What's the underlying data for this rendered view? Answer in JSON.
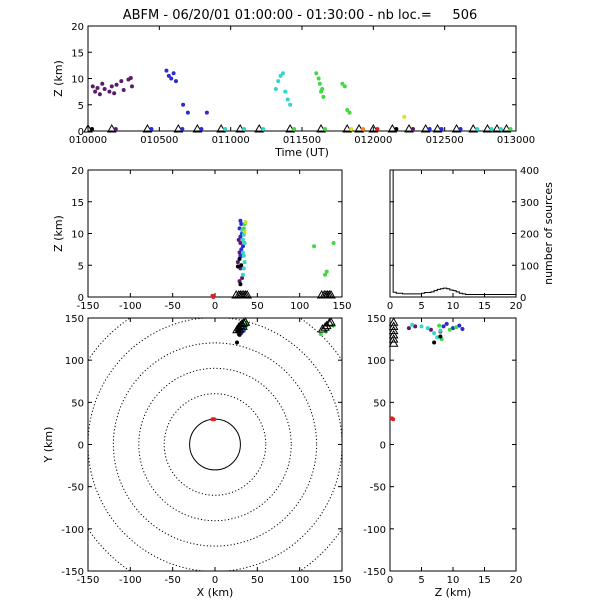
{
  "title": "ABFM - 06/20/01 01:00:00 - 01:30:00 - nb loc.=     506",
  "colors": {
    "purple": "#5a1a6e",
    "blue": "#2b2bd6",
    "cyan": "#33d6c8",
    "green": "#44d844",
    "yellowgreen": "#b8e82a",
    "yellow": "#e0e020",
    "orange": "#ff8a1a",
    "red": "#e02020",
    "darkred": "#a01010",
    "black": "#000000"
  },
  "chart_data": [
    {
      "id": "time_height",
      "type": "scatter",
      "xlabel": "Time (UT)",
      "ylabel": "Z (km)",
      "xticks": [
        "010000",
        "010500",
        "011000",
        "011500",
        "012000",
        "012500",
        "013000"
      ],
      "yticks": [
        "0",
        "5",
        "10",
        "15",
        "20"
      ],
      "xlim_seconds": [
        0,
        1800
      ],
      "ylim": [
        0,
        20
      ],
      "series": [
        {
          "color": "purple",
          "points": [
            [
              20,
              8.5
            ],
            [
              30,
              7.5
            ],
            [
              40,
              8.2
            ],
            [
              50,
              7.0
            ],
            [
              60,
              9.0
            ],
            [
              70,
              8.0
            ],
            [
              90,
              7.5
            ],
            [
              100,
              8.5
            ],
            [
              110,
              7.2
            ],
            [
              120,
              8.8
            ],
            [
              140,
              9.5
            ],
            [
              150,
              7.8
            ],
            [
              170,
              9.8
            ],
            [
              180,
              10.1
            ],
            [
              185,
              8.5
            ]
          ]
        },
        {
          "color": "blue",
          "points": [
            [
              330,
              11.5
            ],
            [
              340,
              10.5
            ],
            [
              350,
              10.0
            ],
            [
              360,
              11.0
            ],
            [
              370,
              9.5
            ],
            [
              400,
              5.0
            ],
            [
              420,
              3.5
            ],
            [
              500,
              3.5
            ]
          ]
        },
        {
          "color": "cyan",
          "points": [
            [
              790,
              8.0
            ],
            [
              800,
              9.5
            ],
            [
              810,
              10.5
            ],
            [
              820,
              11.0
            ],
            [
              830,
              7.5
            ],
            [
              840,
              6.0
            ],
            [
              850,
              5.0
            ]
          ]
        },
        {
          "color": "green",
          "points": [
            [
              960,
              11.0
            ],
            [
              970,
              10.0
            ],
            [
              975,
              9.0
            ],
            [
              980,
              7.5
            ],
            [
              985,
              8.0
            ],
            [
              990,
              6.5
            ],
            [
              1070,
              9.0
            ],
            [
              1080,
              8.5
            ],
            [
              1090,
              4.0
            ],
            [
              1100,
              3.5
            ]
          ]
        },
        {
          "color": "yellow",
          "points": [
            [
              1330,
              2.7
            ]
          ]
        }
      ],
      "ground_triangles_seconds": [
        0,
        100,
        250,
        380,
        460,
        560,
        640,
        720,
        850,
        980,
        1090,
        1140,
        1200,
        1280,
        1350,
        1420,
        1470,
        1550,
        1620,
        1680,
        1720,
        1760
      ]
    },
    {
      "id": "x_height",
      "type": "scatter",
      "xlabel": "",
      "ylabel": "Z (km)",
      "xticks": [
        "-150",
        "-100",
        "-50",
        "0",
        "50",
        "100",
        "150"
      ],
      "yticks": [
        "0",
        "5",
        "10",
        "15",
        "20"
      ],
      "xlim": [
        -150,
        150
      ],
      "ylim": [
        0,
        20
      ],
      "series": [
        {
          "color": "purple",
          "points": [
            [
              28,
              9.0
            ],
            [
              30,
              8.5
            ],
            [
              29,
              7.0
            ],
            [
              31,
              6.5
            ],
            [
              27,
              5.5
            ],
            [
              30,
              4.5
            ],
            [
              32,
              3.0
            ],
            [
              29,
              2.5
            ]
          ]
        },
        {
          "color": "blue",
          "points": [
            [
              30,
              12.0
            ],
            [
              31,
              11.5
            ],
            [
              29,
              10.8
            ],
            [
              32,
              10.0
            ],
            [
              30,
              9.5
            ],
            [
              33,
              8.0
            ],
            [
              31,
              7.5
            ],
            [
              30,
              6.5
            ]
          ]
        },
        {
          "color": "cyan",
          "points": [
            [
              32,
              10.5
            ],
            [
              34,
              9.8
            ],
            [
              33,
              9.0
            ],
            [
              35,
              8.5
            ],
            [
              33,
              7.0
            ],
            [
              34,
              6.5
            ],
            [
              35,
              5.5
            ],
            [
              34,
              4.5
            ],
            [
              33,
              3.5
            ]
          ]
        },
        {
          "color": "green",
          "points": [
            [
              35,
              11.5
            ],
            [
              34,
              10.8
            ],
            [
              117,
              8.0
            ],
            [
              130,
              3.5
            ],
            [
              132,
              4.0
            ],
            [
              140,
              8.5
            ]
          ]
        },
        {
          "color": "yellowgreen",
          "points": [
            [
              36,
              11.8
            ],
            [
              35,
              10.3
            ]
          ]
        },
        {
          "color": "black",
          "points": [
            [
              29,
              6.0
            ],
            [
              31,
              5.0
            ],
            [
              27,
              4.8
            ],
            [
              30,
              2.0
            ]
          ]
        },
        {
          "color": "red",
          "points": [
            [
              -3,
              0.2
            ],
            [
              -2,
              0.0
            ]
          ]
        }
      ],
      "ground_triangles_x": [
        25,
        28,
        30,
        32,
        34,
        36,
        38,
        126,
        129,
        131,
        133,
        135,
        137
      ]
    },
    {
      "id": "histogram_z",
      "type": "bar",
      "xlabel": "",
      "ylabel": "number of sources",
      "xticks": [
        "0",
        "5",
        "10",
        "15",
        "20"
      ],
      "yticks": [
        "0",
        "100",
        "200",
        "300",
        "400"
      ],
      "xlim": [
        0,
        20
      ],
      "ylim": [
        0,
        400
      ],
      "bin_edges": [
        0,
        0.5,
        1,
        1.5,
        2,
        2.5,
        3,
        3.5,
        4,
        4.5,
        5,
        5.5,
        6,
        6.5,
        7,
        7.5,
        8,
        8.5,
        9,
        9.5,
        10,
        10.5,
        11,
        11.5,
        12,
        12.5,
        13,
        13.5,
        14,
        14.5,
        15,
        15.5,
        16,
        16.5,
        17,
        17.5,
        18,
        18.5,
        19,
        19.5,
        20
      ],
      "values": [
        400,
        15,
        12,
        12,
        10,
        10,
        10,
        10,
        10,
        10,
        12,
        14,
        14,
        16,
        20,
        24,
        26,
        28,
        26,
        22,
        20,
        16,
        12,
        10,
        8,
        8,
        8,
        8,
        8,
        8,
        8,
        8,
        8,
        8,
        8,
        8,
        8,
        8,
        8,
        8
      ]
    },
    {
      "id": "plan_view",
      "type": "scatter",
      "xlabel": "X (km)",
      "ylabel": "Y (km)",
      "xticks": [
        "-150",
        "-100",
        "-50",
        "0",
        "50",
        "100",
        "150"
      ],
      "yticks": [
        "-150",
        "-100",
        "-50",
        "0",
        "50",
        "100",
        "150"
      ],
      "xlim": [
        -150,
        150
      ],
      "ylim": [
        -150,
        150
      ],
      "range_rings_km": [
        30,
        60,
        90,
        120,
        150,
        180
      ],
      "series": [
        {
          "color": "purple",
          "points": [
            [
              28,
              131
            ],
            [
              30,
              133
            ],
            [
              32,
              134
            ],
            [
              29,
              136
            ]
          ]
        },
        {
          "color": "blue",
          "points": [
            [
              30,
              138
            ],
            [
              33,
              139
            ],
            [
              31,
              132
            ],
            [
              34,
              135
            ]
          ]
        },
        {
          "color": "cyan",
          "points": [
            [
              33,
              137
            ],
            [
              35,
              140
            ],
            [
              34,
              141
            ],
            [
              36,
              139
            ]
          ]
        },
        {
          "color": "green",
          "points": [
            [
              36,
              142
            ],
            [
              38,
              143
            ],
            [
              125,
              131
            ],
            [
              131,
              134
            ],
            [
              140,
              141
            ]
          ]
        },
        {
          "color": "black",
          "points": [
            [
              27,
              135
            ],
            [
              29,
              130
            ],
            [
              26,
              121
            ]
          ]
        },
        {
          "color": "red",
          "points": [
            [
              -3,
              30
            ],
            [
              -1,
              30
            ]
          ]
        }
      ],
      "triangles": [
        [
          26,
          136
        ],
        [
          28,
          139
        ],
        [
          30,
          141
        ],
        [
          32,
          143
        ],
        [
          34,
          144
        ],
        [
          36,
          145
        ],
        [
          29,
          137
        ],
        [
          33,
          140
        ],
        [
          127,
          137
        ],
        [
          130,
          139
        ],
        [
          132,
          141
        ],
        [
          135,
          144
        ],
        [
          137,
          145
        ]
      ]
    },
    {
      "id": "z_y_view",
      "type": "scatter",
      "xlabel": "Z (km)",
      "ylabel": "",
      "xticks": [
        "0",
        "5",
        "10",
        "15",
        "20"
      ],
      "yticks": [
        "-150",
        "-100",
        "-50",
        "0",
        "50",
        "100",
        "150"
      ],
      "xlim": [
        0,
        20
      ],
      "ylim": [
        -150,
        150
      ],
      "series": [
        {
          "color": "purple",
          "points": [
            [
              3.0,
              138
            ],
            [
              4.0,
              140
            ],
            [
              6.5,
              136
            ],
            [
              8.0,
              134
            ]
          ]
        },
        {
          "color": "blue",
          "points": [
            [
              8.5,
              140
            ],
            [
              9.0,
              143
            ],
            [
              10.0,
              138
            ],
            [
              11.0,
              141
            ],
            [
              11.5,
              137
            ]
          ]
        },
        {
          "color": "cyan",
          "points": [
            [
              3.5,
              142
            ],
            [
              5.0,
              140
            ],
            [
              6.0,
              138
            ],
            [
              7.0,
              132
            ],
            [
              7.5,
              127
            ],
            [
              8.0,
              135
            ]
          ]
        },
        {
          "color": "green",
          "points": [
            [
              7.8,
              141
            ],
            [
              9.5,
              136
            ],
            [
              10.5,
              139
            ],
            [
              8.2,
              125
            ]
          ]
        },
        {
          "color": "black",
          "points": [
            [
              7.0,
              121
            ],
            [
              8.0,
              128
            ]
          ]
        },
        {
          "color": "red",
          "points": [
            [
              0.3,
              31
            ],
            [
              0.5,
              30
            ]
          ]
        }
      ],
      "triangles": [
        [
          0.1,
          120
        ],
        [
          0.1,
          125
        ],
        [
          0.1,
          130
        ],
        [
          0.1,
          135
        ],
        [
          0.1,
          140
        ],
        [
          0.1,
          145
        ]
      ]
    }
  ]
}
